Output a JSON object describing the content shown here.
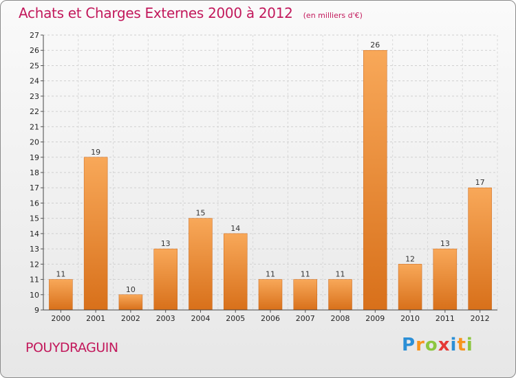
{
  "header": {
    "title": "Achats et Charges Externes 2000 à 2012",
    "subtitle": "(en milliers d'€)"
  },
  "footer": {
    "commune": "POUYDRAGUIN",
    "logo_letters": [
      "P",
      "r",
      "o",
      "x",
      "i",
      "t",
      "i"
    ]
  },
  "colors": {
    "accent": "#c2185b",
    "bar_light": "#f7a555",
    "bar_dark": "#d96f14"
  },
  "chart_data": {
    "type": "bar",
    "title": "Achats et Charges Externes 2000 à 2012",
    "subtitle": "(en milliers d'€)",
    "xlabel": "",
    "ylabel": "",
    "categories": [
      "2000",
      "2001",
      "2002",
      "2003",
      "2004",
      "2005",
      "2006",
      "2007",
      "2008",
      "2009",
      "2010",
      "2011",
      "2012"
    ],
    "values": [
      11,
      19,
      10,
      13,
      15,
      14,
      11,
      11,
      11,
      26,
      12,
      13,
      17
    ],
    "ylim": [
      9,
      27
    ],
    "yticks": [
      9,
      10,
      11,
      12,
      13,
      14,
      15,
      16,
      17,
      18,
      19,
      20,
      21,
      22,
      23,
      24,
      25,
      26,
      27
    ],
    "grid": true,
    "legend": "none"
  }
}
